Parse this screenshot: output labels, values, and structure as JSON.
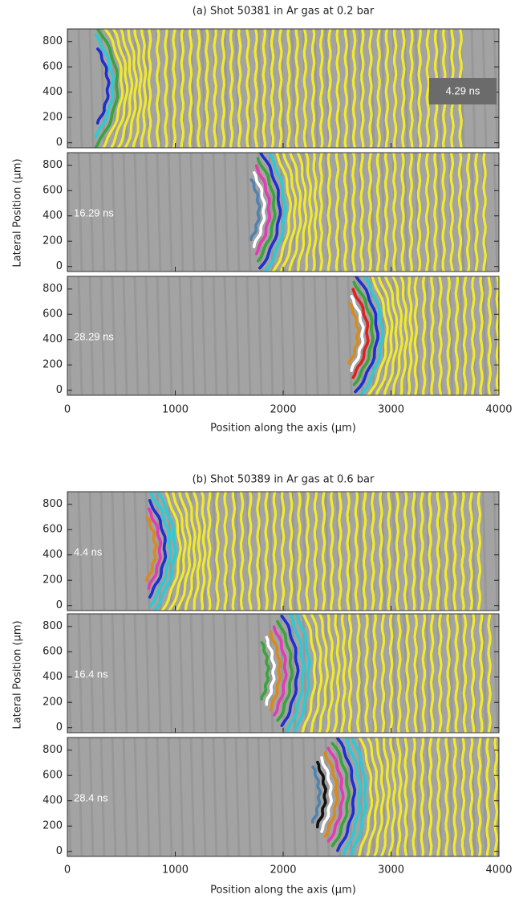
{
  "figures": [
    {
      "title": "(a) Shot 50381 in Ar gas at 0.2 bar",
      "panels": [
        {
          "time": "4.29 ns"
        },
        {
          "time": "16.29 ns"
        },
        {
          "time": "28.29 ns"
        }
      ],
      "ylabel": "Lateral Position (μm)",
      "xlabel": "Position along the axis (μm)",
      "xlim": [
        0,
        4000
      ],
      "ylim": [
        -40,
        900
      ],
      "xticks": [
        0,
        1000,
        2000,
        3000,
        4000
      ],
      "yticks": [
        0,
        200,
        400,
        600,
        800
      ]
    },
    {
      "title": "(b) Shot 50389 in Ar gas at 0.6 bar",
      "panels": [
        {
          "time": "4.4 ns"
        },
        {
          "time": "16.4 ns"
        },
        {
          "time": "28.4 ns"
        }
      ],
      "ylabel": "Lateral Position (μm)",
      "xlabel": "Position along the axis (μm)",
      "xlim": [
        0,
        4000
      ],
      "ylim": [
        -40,
        900
      ],
      "xticks": [
        0,
        1000,
        2000,
        3000,
        4000
      ],
      "yticks": [
        0,
        200,
        400,
        600,
        800
      ]
    }
  ]
}
